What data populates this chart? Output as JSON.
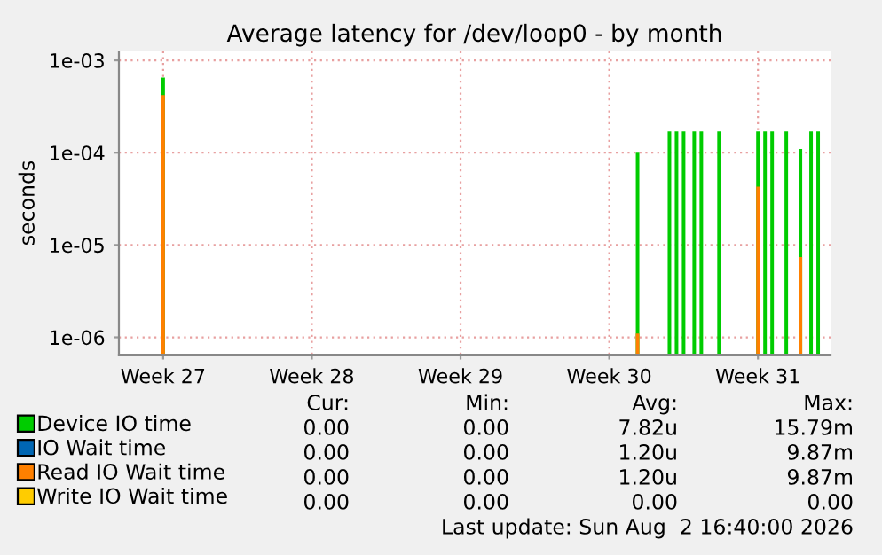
{
  "chart_data": {
    "type": "bar",
    "title": "Average latency for /dev/loop0 - by month",
    "ylabel": "seconds",
    "log": "y",
    "grid": true,
    "legend": "bottom",
    "categories": [
      null,
      null,
      null,
      null,
      null,
      null,
      null,
      null,
      null,
      null,
      null,
      null,
      "Week 27",
      null,
      null,
      null,
      null,
      null,
      null,
      null,
      null,
      null,
      null,
      null,
      null,
      null,
      null,
      null,
      null,
      null,
      null,
      null,
      null,
      null,
      null,
      null,
      null,
      null,
      null,
      null,
      null,
      null,
      null,
      null,
      null,
      null,
      null,
      null,
      null,
      null,
      null,
      null,
      null,
      null,
      "Week 28",
      null,
      null,
      null,
      null,
      null,
      null,
      null,
      null,
      null,
      null,
      null,
      null,
      null,
      null,
      null,
      null,
      null,
      null,
      null,
      null,
      null,
      null,
      null,
      null,
      null,
      null,
      null,
      null,
      null,
      null,
      null,
      null,
      null,
      null,
      null,
      null,
      null,
      null,
      null,
      null,
      null,
      "Week 29",
      null,
      null,
      null,
      null,
      null,
      null,
      null,
      null,
      null,
      null,
      null,
      null,
      null,
      null,
      null,
      null,
      null,
      null,
      null,
      null,
      null,
      null,
      null,
      null,
      null,
      null,
      null,
      null,
      null,
      null,
      null,
      null,
      null,
      null,
      null,
      null,
      null,
      null,
      null,
      null,
      null,
      "Week 30",
      null,
      null,
      null,
      null,
      null,
      null,
      null,
      null,
      null,
      null,
      null,
      null,
      null,
      null,
      null,
      null,
      null,
      null,
      null,
      null,
      null,
      null,
      null,
      null,
      null,
      null,
      null,
      null,
      null,
      null,
      null,
      null,
      null,
      null,
      null,
      null,
      null,
      null,
      null,
      null,
      null,
      "Week 31",
      null,
      null,
      null,
      null,
      null,
      null,
      null,
      null,
      null,
      null,
      null,
      null,
      null,
      null,
      null,
      null,
      null,
      null,
      null,
      null
    ],
    "ylim": [
      6.5e-07,
      0.00125
    ],
    "yticks": [
      {
        "value": 0.001,
        "label": "1e-03"
      },
      {
        "value": 0.0001,
        "label": "1e-04"
      },
      {
        "value": 1e-05,
        "label": "1e-05"
      },
      {
        "value": 1e-06,
        "label": "1e-06"
      }
    ],
    "series": [
      {
        "name": "Device IO time",
        "color": "#00cc00",
        "values": [
          null,
          null,
          null,
          null,
          null,
          null,
          null,
          null,
          null,
          null,
          null,
          null,
          0.00065,
          null,
          null,
          null,
          null,
          null,
          null,
          null,
          null,
          null,
          null,
          null,
          null,
          null,
          null,
          null,
          null,
          null,
          null,
          null,
          null,
          null,
          null,
          null,
          null,
          null,
          null,
          null,
          null,
          null,
          null,
          null,
          null,
          null,
          null,
          null,
          null,
          null,
          null,
          null,
          null,
          null,
          null,
          null,
          null,
          null,
          null,
          null,
          null,
          null,
          null,
          null,
          null,
          null,
          null,
          null,
          null,
          null,
          null,
          null,
          null,
          null,
          null,
          null,
          null,
          null,
          null,
          null,
          null,
          null,
          null,
          null,
          null,
          null,
          null,
          null,
          null,
          null,
          null,
          null,
          null,
          null,
          null,
          null,
          null,
          null,
          null,
          null,
          null,
          null,
          null,
          null,
          null,
          null,
          null,
          null,
          null,
          null,
          null,
          null,
          null,
          null,
          null,
          null,
          null,
          null,
          null,
          null,
          null,
          null,
          null,
          null,
          null,
          null,
          null,
          null,
          null,
          null,
          null,
          null,
          null,
          null,
          null,
          null,
          null,
          null,
          null,
          null,
          null,
          null,
          null,
          null,
          null,
          null,
          0.0001,
          null,
          null,
          null,
          null,
          null,
          null,
          null,
          null,
          0.00017,
          null,
          0.00017,
          null,
          0.00017,
          null,
          null,
          0.00017,
          null,
          0.00017,
          null,
          null,
          null,
          null,
          0.00017,
          null,
          null,
          null,
          null,
          null,
          null,
          null,
          null,
          null,
          null,
          0.00017,
          null,
          0.00017,
          null,
          0.00017,
          null,
          null,
          null,
          0.00017,
          null,
          null,
          null,
          0.00011,
          null,
          null,
          0.00017,
          null,
          0.00017,
          null,
          null,
          null
        ]
      },
      {
        "name": "IO Wait time",
        "color": "#0066b3",
        "values": [
          null,
          null,
          null,
          null,
          null,
          null,
          null,
          null,
          null,
          null,
          null,
          null,
          null,
          null,
          null,
          null,
          null,
          null,
          null,
          null,
          null,
          null,
          null,
          null,
          null,
          null,
          null,
          null,
          null,
          null,
          null,
          null,
          null,
          null,
          null,
          null,
          null,
          null,
          null,
          null,
          null,
          null,
          null,
          null,
          null,
          null,
          null,
          null,
          null,
          null,
          null,
          null,
          null,
          null,
          null,
          null,
          null,
          null,
          null,
          null,
          null,
          null,
          null,
          null,
          null,
          null,
          null,
          null,
          null,
          null,
          null,
          null,
          null,
          null,
          null,
          null,
          null,
          null,
          null,
          null,
          null,
          null,
          null,
          null,
          null,
          null,
          null,
          null,
          null,
          null,
          null,
          null,
          null,
          null,
          null,
          null,
          null,
          null,
          null,
          null,
          null,
          null,
          null,
          null,
          null,
          null,
          null,
          null,
          null,
          null,
          null,
          null,
          null,
          null,
          null,
          null,
          null,
          null,
          null,
          null,
          null,
          null,
          null,
          null,
          null,
          null,
          null,
          null,
          null,
          null,
          null,
          null,
          null,
          null,
          null,
          null,
          null,
          null,
          null,
          null,
          null,
          null,
          null,
          null,
          null,
          null,
          null,
          null,
          null,
          null,
          null,
          null,
          null,
          null,
          null,
          null,
          null,
          null,
          null,
          null,
          null,
          null,
          null,
          null,
          null,
          null,
          null,
          null,
          null,
          null,
          null,
          null,
          null,
          null,
          null,
          null,
          null,
          null,
          null,
          null,
          null,
          null,
          null,
          null,
          null,
          null,
          null,
          null,
          null,
          null,
          null,
          null,
          null,
          null,
          null,
          null,
          null,
          null,
          null,
          null,
          null
        ]
      },
      {
        "name": "Read IO Wait time",
        "color": "#ff8000",
        "values": [
          null,
          null,
          null,
          null,
          null,
          null,
          null,
          null,
          null,
          null,
          null,
          null,
          0.00042,
          null,
          null,
          null,
          null,
          null,
          null,
          null,
          null,
          null,
          null,
          null,
          null,
          null,
          null,
          null,
          null,
          null,
          null,
          null,
          null,
          null,
          null,
          null,
          null,
          null,
          null,
          null,
          null,
          null,
          null,
          null,
          null,
          null,
          null,
          null,
          null,
          null,
          null,
          null,
          null,
          null,
          null,
          null,
          null,
          null,
          null,
          null,
          null,
          null,
          null,
          null,
          null,
          null,
          null,
          null,
          null,
          null,
          null,
          null,
          null,
          null,
          null,
          null,
          null,
          null,
          null,
          null,
          null,
          null,
          null,
          null,
          null,
          null,
          null,
          null,
          null,
          null,
          null,
          null,
          null,
          null,
          null,
          null,
          null,
          null,
          null,
          null,
          null,
          null,
          null,
          null,
          null,
          null,
          null,
          null,
          null,
          null,
          null,
          null,
          null,
          null,
          null,
          null,
          null,
          null,
          null,
          null,
          null,
          null,
          null,
          null,
          null,
          null,
          null,
          null,
          null,
          null,
          null,
          null,
          null,
          null,
          null,
          null,
          null,
          null,
          null,
          null,
          null,
          null,
          null,
          null,
          null,
          null,
          1.1e-06,
          null,
          null,
          null,
          null,
          null,
          null,
          null,
          null,
          null,
          null,
          null,
          null,
          null,
          null,
          null,
          null,
          null,
          null,
          null,
          null,
          null,
          null,
          null,
          null,
          null,
          null,
          null,
          null,
          null,
          null,
          null,
          null,
          null,
          4.3e-05,
          null,
          null,
          null,
          null,
          null,
          null,
          null,
          null,
          null,
          null,
          null,
          7.4e-06,
          null,
          null,
          null,
          null,
          null,
          null,
          null,
          null
        ]
      },
      {
        "name": "Write IO Wait time",
        "color": "#ffcc00",
        "values": [
          null,
          null,
          null,
          null,
          null,
          null,
          null,
          null,
          null,
          null,
          null,
          null,
          null,
          null,
          null,
          null,
          null,
          null,
          null,
          null,
          null,
          null,
          null,
          null,
          null,
          null,
          null,
          null,
          null,
          null,
          null,
          null,
          null,
          null,
          null,
          null,
          null,
          null,
          null,
          null,
          null,
          null,
          null,
          null,
          null,
          null,
          null,
          null,
          null,
          null,
          null,
          null,
          null,
          null,
          null,
          null,
          null,
          null,
          null,
          null,
          null,
          null,
          null,
          null,
          null,
          null,
          null,
          null,
          null,
          null,
          null,
          null,
          null,
          null,
          null,
          null,
          null,
          null,
          null,
          null,
          null,
          null,
          null,
          null,
          null,
          null,
          null,
          null,
          null,
          null,
          null,
          null,
          null,
          null,
          null,
          null,
          null,
          null,
          null,
          null,
          null,
          null,
          null,
          null,
          null,
          null,
          null,
          null,
          null,
          null,
          null,
          null,
          null,
          null,
          null,
          null,
          null,
          null,
          null,
          null,
          null,
          null,
          null,
          null,
          null,
          null,
          null,
          null,
          null,
          null,
          null,
          null,
          null,
          null,
          null,
          null,
          null,
          null,
          null,
          null,
          null,
          null,
          null,
          null,
          null,
          null,
          null,
          null,
          null,
          null,
          null,
          null,
          null,
          null,
          null,
          null,
          null,
          null,
          null,
          null,
          null,
          null,
          null,
          null,
          null,
          null,
          null,
          null,
          null,
          null,
          null,
          null,
          null,
          null,
          null,
          null,
          null,
          null,
          null,
          null,
          null,
          null,
          null,
          null,
          null,
          null,
          null,
          null,
          null,
          null,
          null,
          null,
          null,
          null,
          null,
          null,
          null,
          null,
          null,
          null,
          null
        ]
      }
    ],
    "annotations": [
      "Cur:",
      "Min:",
      "Avg:",
      "Max:",
      "0.00",
      "0.00",
      "7.82u",
      "15.79m",
      "0.00",
      "0.00",
      "1.20u",
      "9.87m",
      "0.00",
      "0.00",
      "1.20u",
      "9.87m",
      "0.00",
      "0.00",
      "0.00",
      "0.00",
      "Last update: Sun Aug  2 16:40:00 2026"
    ]
  }
}
